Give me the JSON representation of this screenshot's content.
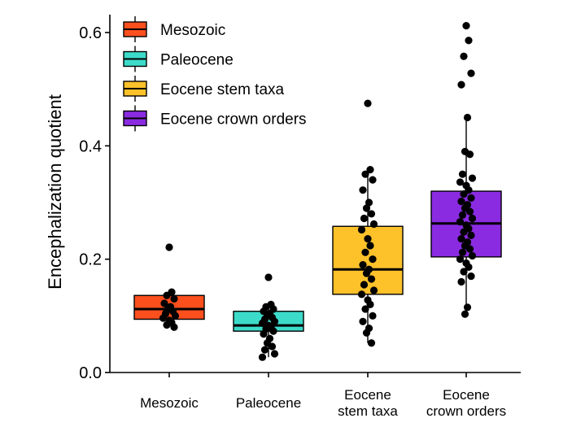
{
  "chart_data": {
    "type": "box",
    "ylabel": "Encephalization quotient",
    "ylim": [
      0,
      0.63
    ],
    "yticks": [
      "0.0",
      "0.2",
      "0.4",
      "0.6"
    ],
    "grid": false,
    "legend_position": "top-left",
    "categories": [
      {
        "lines": [
          "Mesozoic"
        ]
      },
      {
        "lines": [
          "Paleocene"
        ]
      },
      {
        "lines": [
          "Eocene",
          "stem taxa"
        ]
      },
      {
        "lines": [
          "Eocene",
          "crown orders"
        ]
      }
    ],
    "series": [
      {
        "name": "Mesozoic",
        "color": "#fc4f1e",
        "q1": 0.094,
        "median": 0.112,
        "q3": 0.136,
        "whisker_low": 0.08,
        "whisker_high": 0.142,
        "points": [
          0.221,
          0.142,
          0.136,
          0.13,
          0.122,
          0.116,
          0.112,
          0.108,
          0.104,
          0.1,
          0.096,
          0.092,
          0.088,
          0.084,
          0.08
        ]
      },
      {
        "name": "Paleocene",
        "color": "#3cdbc9",
        "q1": 0.073,
        "median": 0.083,
        "q3": 0.108,
        "whisker_low": 0.027,
        "whisker_high": 0.12,
        "points": [
          0.168,
          0.12,
          0.116,
          0.112,
          0.108,
          0.104,
          0.1,
          0.097,
          0.094,
          0.09,
          0.087,
          0.083,
          0.08,
          0.077,
          0.073,
          0.068,
          0.06,
          0.052,
          0.046,
          0.04,
          0.033,
          0.027
        ]
      },
      {
        "name": "Eocene stem taxa",
        "color": "#fdc12a",
        "q1": 0.138,
        "median": 0.182,
        "q3": 0.258,
        "whisker_low": 0.052,
        "whisker_high": 0.358,
        "points": [
          0.475,
          0.358,
          0.35,
          0.34,
          0.322,
          0.3,
          0.29,
          0.28,
          0.272,
          0.262,
          0.252,
          0.236,
          0.224,
          0.212,
          0.2,
          0.19,
          0.182,
          0.175,
          0.165,
          0.155,
          0.145,
          0.138,
          0.128,
          0.12,
          0.112,
          0.1,
          0.09,
          0.078,
          0.07,
          0.052
        ]
      },
      {
        "name": "Eocene crown orders",
        "color": "#8a2be2",
        "q1": 0.204,
        "median": 0.263,
        "q3": 0.32,
        "whisker_low": 0.103,
        "whisker_high": 0.45,
        "points": [
          0.612,
          0.586,
          0.558,
          0.528,
          0.508,
          0.45,
          0.39,
          0.385,
          0.35,
          0.343,
          0.336,
          0.33,
          0.322,
          0.315,
          0.308,
          0.302,
          0.296,
          0.29,
          0.284,
          0.278,
          0.272,
          0.266,
          0.26,
          0.254,
          0.248,
          0.242,
          0.236,
          0.23,
          0.224,
          0.218,
          0.212,
          0.206,
          0.2,
          0.193,
          0.186,
          0.178,
          0.17,
          0.16,
          0.115,
          0.103
        ]
      }
    ]
  }
}
